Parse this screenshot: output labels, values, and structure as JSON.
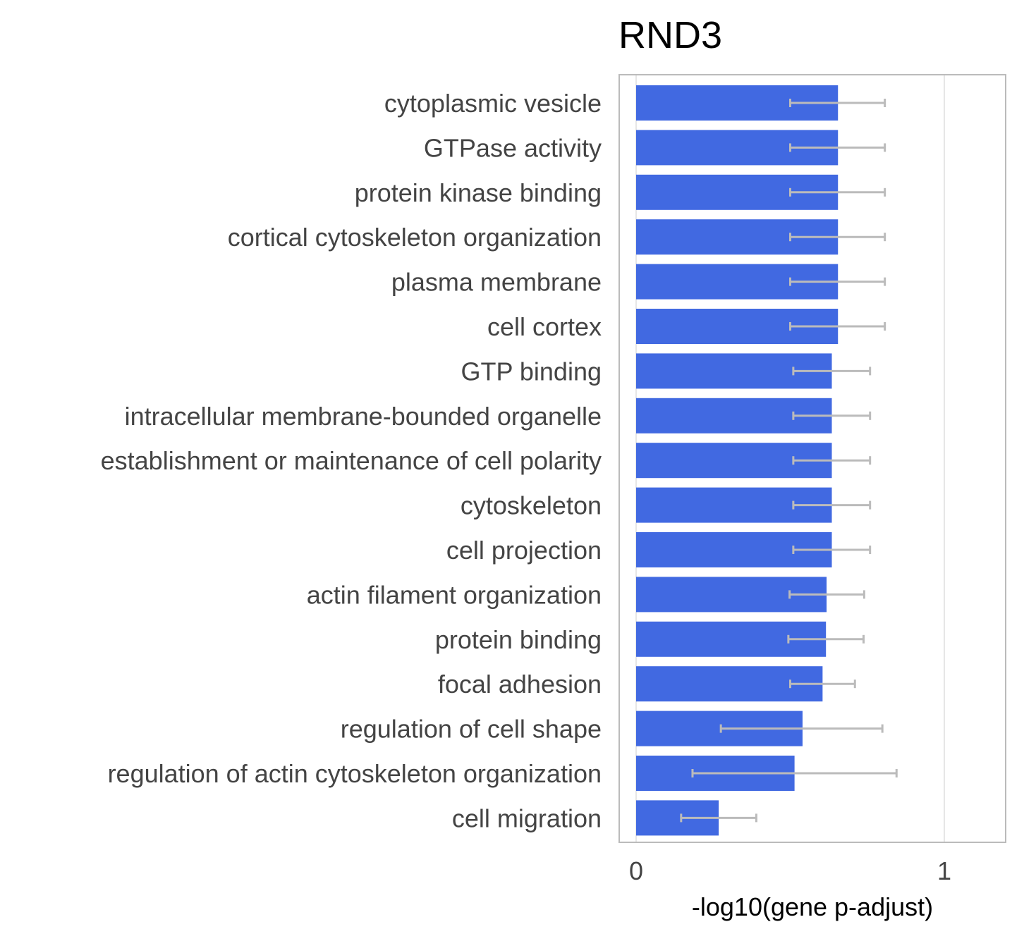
{
  "chart_data": {
    "type": "bar",
    "orientation": "horizontal",
    "title": "RND3",
    "xlabel": "-log10(gene p-adjust)",
    "ylabel": "",
    "xlim": [
      0,
      1.2
    ],
    "xticks": [
      0,
      1
    ],
    "xtick_labels": [
      "0",
      "1"
    ],
    "grid": true,
    "bar_color": "#4169E1",
    "errorbar_color": "#BBBBBB",
    "categories": [
      "cytoplasmic vesicle",
      "GTPase activity",
      "protein kinase binding",
      "cortical cytoskeleton organization",
      "plasma membrane",
      "cell cortex",
      "GTP binding",
      "intracellular membrane-bounded organelle",
      "establishment or maintenance of cell polarity",
      "cytoskeleton",
      "cell projection",
      "actin filament organization",
      "protein binding",
      "focal adhesion",
      "regulation of cell shape",
      "regulation of actin cytoskeleton organization",
      "cell migration"
    ],
    "values": [
      0.655,
      0.655,
      0.655,
      0.655,
      0.655,
      0.655,
      0.635,
      0.635,
      0.635,
      0.635,
      0.635,
      0.618,
      0.616,
      0.605,
      0.54,
      0.514,
      0.268
    ],
    "error_low": [
      0.5,
      0.5,
      0.5,
      0.5,
      0.5,
      0.5,
      0.51,
      0.51,
      0.51,
      0.51,
      0.51,
      0.498,
      0.494,
      0.5,
      0.275,
      0.183,
      0.146
    ],
    "error_high": [
      0.807,
      0.807,
      0.807,
      0.807,
      0.807,
      0.807,
      0.759,
      0.759,
      0.759,
      0.759,
      0.759,
      0.74,
      0.738,
      0.71,
      0.799,
      0.845,
      0.39
    ]
  }
}
